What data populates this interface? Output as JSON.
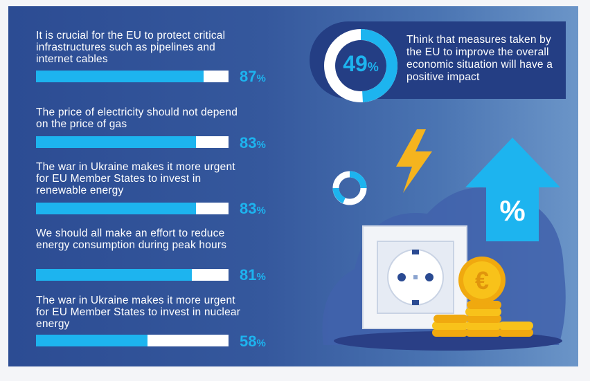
{
  "statements": [
    {
      "text": "It is crucial for the EU to protect critical infrastructures such as pipelines and internet cables",
      "value": 87,
      "value_label": "87",
      "unit": "%"
    },
    {
      "text": "The price of electricity should not depend on the price of gas",
      "value": 83,
      "value_label": "83",
      "unit": "%"
    },
    {
      "text": "The war in Ukraine makes it more urgent for EU Member States to invest in renewable energy",
      "value": 83,
      "value_label": "83",
      "unit": "%"
    },
    {
      "text": "We should all make an effort to reduce energy consumption during peak hours",
      "value": 81,
      "value_label": "81",
      "unit": "%"
    },
    {
      "text": "The war in Ukraine makes it more urgent for EU Member States to invest in nuclear energy",
      "value": 58,
      "value_label": "58",
      "unit": "%"
    }
  ],
  "highlight": {
    "value": 49,
    "value_label": "49",
    "unit": "%",
    "text": "Think that measures taken by the EU to improve the overall economic situation will have a positive impact"
  },
  "illustration": {
    "arrow_symbol": "%",
    "coin_symbol": "€",
    "icons": [
      "lightning-bolt-icon",
      "ring-icon",
      "up-arrow-icon",
      "power-socket-icon",
      "euro-coin-icon",
      "coin-stack-icon"
    ]
  },
  "colors": {
    "accent": "#1db4ef",
    "bar_track": "#ffffff",
    "panel_dark": "#2c4c93",
    "callout": "#243e84",
    "bolt": "#f5b41e",
    "coin": "#f8c21a"
  }
}
